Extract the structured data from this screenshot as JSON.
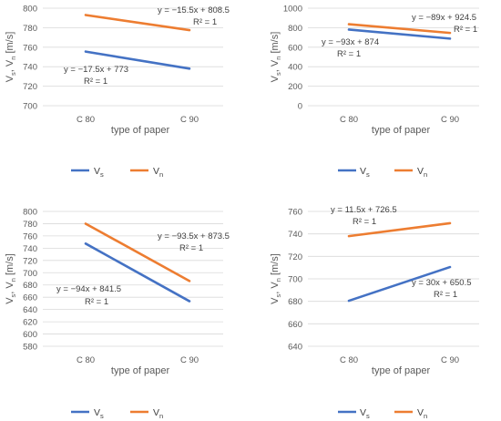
{
  "chart_data": [
    {
      "type": "line",
      "categories": [
        "C 80",
        "C 90"
      ],
      "ylim": [
        700,
        800
      ],
      "yticks": [
        700,
        720,
        740,
        760,
        780,
        800
      ],
      "xlabel": "type of paper",
      "ylabel": {
        "main": "V",
        "sub1": "s",
        "sep": ", V",
        "sub2": "n",
        "unit": " [m/s]"
      },
      "series": [
        {
          "name": "V",
          "sub": "s",
          "color": "#4472C4",
          "values": [
            755.5,
            738
          ],
          "trendline": [
            "y = −17.5x + 773",
            "R² = 1"
          ]
        },
        {
          "name": "V",
          "sub": "n",
          "color": "#ED7D31",
          "values": [
            793,
            777.5
          ],
          "trendline": [
            "y = −15.5x + 808.5",
            "R² = 1"
          ]
        }
      ]
    },
    {
      "type": "line",
      "categories": [
        "C 80",
        "C 90"
      ],
      "ylim": [
        0,
        1000
      ],
      "yticks": [
        0,
        200,
        400,
        600,
        800,
        1000
      ],
      "xlabel": "type of paper",
      "ylabel": {
        "main": "V",
        "sub1": "s",
        "sep": ", V",
        "sub2": "n",
        "unit": " [m/s]"
      },
      "series": [
        {
          "name": "V",
          "sub": "s",
          "color": "#4472C4",
          "values": [
            781,
            688
          ],
          "trendline": [
            "y = −93x + 874",
            "R² = 1"
          ]
        },
        {
          "name": "V",
          "sub": "n",
          "color": "#ED7D31",
          "values": [
            835.5,
            746.5
          ],
          "trendline": [
            "y = −89x + 924.5",
            "R² = 1"
          ]
        }
      ]
    },
    {
      "type": "line",
      "categories": [
        "C 80",
        "C 90"
      ],
      "ylim": [
        580,
        800
      ],
      "yticks": [
        580,
        600,
        620,
        640,
        660,
        680,
        700,
        720,
        740,
        760,
        780,
        800
      ],
      "xlabel": "type of paper",
      "ylabel": {
        "main": "V",
        "sub1": "s",
        "sep": ", V",
        "sub2": "n",
        "unit": " [m/s]"
      },
      "series": [
        {
          "name": "V",
          "sub": "s",
          "color": "#4472C4",
          "values": [
            747.5,
            653.5
          ],
          "trendline": [
            "y = −94x + 841.5",
            "R² = 1"
          ]
        },
        {
          "name": "V",
          "sub": "n",
          "color": "#ED7D31",
          "values": [
            780,
            686.5
          ],
          "trendline": [
            "y = −93.5x + 873.5",
            "R² = 1"
          ]
        }
      ]
    },
    {
      "type": "line",
      "categories": [
        "C 80",
        "C 90"
      ],
      "ylim": [
        640,
        760
      ],
      "yticks": [
        640,
        660,
        680,
        700,
        720,
        740,
        760
      ],
      "xlabel": "type of paper",
      "ylabel": {
        "main": "V",
        "sub1": "s",
        "sep": ", V",
        "sub2": "n",
        "unit": " [m/s]"
      },
      "series": [
        {
          "name": "V",
          "sub": "s",
          "color": "#4472C4",
          "values": [
            680.5,
            710.5
          ],
          "trendline": [
            "y = 30x + 650.5",
            "R² = 1"
          ]
        },
        {
          "name": "V",
          "sub": "n",
          "color": "#ED7D31",
          "values": [
            738,
            749.5
          ],
          "trendline": [
            "y = 11.5x + 726.5",
            "R² = 1"
          ]
        }
      ]
    }
  ]
}
